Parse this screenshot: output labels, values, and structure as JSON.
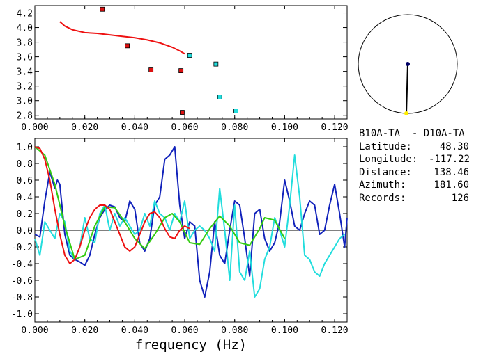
{
  "chart_data": [
    {
      "type": "scatter",
      "xlim": [
        0.0,
        0.125
      ],
      "ylim": [
        2.75,
        4.3
      ],
      "xticks": [
        "0.000",
        "0.020",
        "0.040",
        "0.060",
        "0.080",
        "0.100",
        "0.120"
      ],
      "yticks": [
        "4.2",
        "4.0",
        "3.8",
        "3.6",
        "3.4",
        "3.2",
        "3.0",
        "2.8"
      ],
      "ytick_values": [
        4.2,
        4.0,
        3.8,
        3.6,
        3.4,
        3.2,
        3.0,
        2.8
      ],
      "xtick_values": [
        0.0,
        0.02,
        0.04,
        0.06,
        0.08,
        0.1,
        0.12
      ],
      "series": [
        {
          "name": "red squares",
          "color": "#dd1111",
          "marker": "square",
          "x": [
            0.027,
            0.037,
            0.0465,
            0.0585,
            0.059
          ],
          "y": [
            4.25,
            3.75,
            3.42,
            3.41,
            2.84
          ]
        },
        {
          "name": "cyan squares",
          "color": "#22dddd",
          "marker": "square",
          "x": [
            0.062,
            0.0725,
            0.074,
            0.0805
          ],
          "y": [
            3.62,
            3.5,
            3.05,
            2.86
          ]
        },
        {
          "name": "red curve",
          "color": "#ee1111",
          "marker": "line",
          "x": [
            0.01,
            0.012,
            0.015,
            0.02,
            0.025,
            0.03,
            0.035,
            0.04,
            0.045,
            0.05,
            0.055,
            0.058,
            0.06
          ],
          "y": [
            4.08,
            4.02,
            3.97,
            3.93,
            3.92,
            3.9,
            3.88,
            3.86,
            3.83,
            3.79,
            3.73,
            3.68,
            3.64
          ]
        }
      ]
    },
    {
      "type": "line",
      "xlim": [
        0.0,
        0.125
      ],
      "ylim": [
        -1.1,
        1.1
      ],
      "xticks": [
        "0.000",
        "0.020",
        "0.040",
        "0.060",
        "0.080",
        "0.100",
        "0.120"
      ],
      "xtick_values": [
        0.0,
        0.02,
        0.04,
        0.06,
        0.08,
        0.1,
        0.12
      ],
      "yticks": [
        "1.0",
        "0.8",
        "0.6",
        "0.4",
        "0.2",
        "0.0",
        "-0.2",
        "-0.4",
        "-0.6",
        "-0.8",
        "-1.0"
      ],
      "ytick_values": [
        1.0,
        0.8,
        0.6,
        0.4,
        0.2,
        0.0,
        -0.2,
        -0.4,
        -0.6,
        -0.8,
        -1.0
      ],
      "zero_line": true,
      "xlabel": "frequency (Hz)",
      "series": [
        {
          "name": "blue",
          "color": "#1122bb",
          "x": [
            0.0,
            0.002,
            0.004,
            0.006,
            0.008,
            0.009,
            0.01,
            0.012,
            0.014,
            0.016,
            0.018,
            0.02,
            0.022,
            0.024,
            0.026,
            0.028,
            0.03,
            0.032,
            0.034,
            0.036,
            0.038,
            0.04,
            0.042,
            0.044,
            0.046,
            0.048,
            0.05,
            0.052,
            0.054,
            0.056,
            0.058,
            0.06,
            0.062,
            0.064,
            0.066,
            0.068,
            0.07,
            0.072,
            0.074,
            0.076,
            0.078,
            0.08,
            0.082,
            0.084,
            0.086,
            0.088,
            0.09,
            0.092,
            0.094,
            0.096,
            0.098,
            0.1,
            0.102,
            0.104,
            0.106,
            0.108,
            0.11,
            0.112,
            0.114,
            0.116,
            0.118,
            0.12,
            0.122,
            0.124,
            0.125
          ],
          "y": [
            -0.05,
            -0.08,
            0.35,
            0.7,
            0.5,
            0.6,
            0.55,
            -0.05,
            -0.3,
            -0.35,
            -0.38,
            -0.42,
            -0.3,
            -0.05,
            0.15,
            0.25,
            0.3,
            0.28,
            0.15,
            0.1,
            0.35,
            0.25,
            -0.15,
            -0.25,
            -0.1,
            0.3,
            0.4,
            0.85,
            0.9,
            1.0,
            0.3,
            -0.1,
            0.1,
            0.05,
            -0.6,
            -0.8,
            -0.5,
            0.1,
            -0.3,
            -0.4,
            0.0,
            0.35,
            0.3,
            -0.1,
            -0.55,
            0.2,
            0.25,
            -0.1,
            -0.25,
            -0.15,
            0.1,
            0.6,
            0.35,
            0.05,
            0.0,
            0.2,
            0.35,
            0.3,
            -0.05,
            0.0,
            0.3,
            0.55,
            0.2,
            -0.2,
            0.15
          ]
        },
        {
          "name": "cyan",
          "color": "#22dddd",
          "x": [
            0.0,
            0.002,
            0.004,
            0.006,
            0.008,
            0.01,
            0.012,
            0.014,
            0.016,
            0.018,
            0.02,
            0.022,
            0.024,
            0.026,
            0.028,
            0.03,
            0.032,
            0.034,
            0.036,
            0.038,
            0.04,
            0.042,
            0.044,
            0.046,
            0.048,
            0.05,
            0.052,
            0.054,
            0.056,
            0.058,
            0.06,
            0.062,
            0.064,
            0.066,
            0.068,
            0.07,
            0.072,
            0.074,
            0.076,
            0.078,
            0.08,
            0.082,
            0.084,
            0.086,
            0.088,
            0.09,
            0.092,
            0.094,
            0.096,
            0.098,
            0.1,
            0.102,
            0.104,
            0.106,
            0.108,
            0.11,
            0.112,
            0.114,
            0.116,
            0.118,
            0.12,
            0.122,
            0.124
          ],
          "y": [
            -0.1,
            -0.3,
            0.1,
            0.0,
            -0.1,
            0.2,
            0.1,
            -0.25,
            -0.35,
            -0.2,
            0.15,
            -0.1,
            -0.15,
            0.2,
            0.3,
            0.0,
            0.2,
            0.05,
            0.15,
            0.05,
            -0.05,
            0.0,
            0.2,
            0.05,
            0.35,
            0.2,
            0.15,
            0.0,
            0.2,
            0.1,
            0.35,
            -0.1,
            0.0,
            0.05,
            0.0,
            -0.1,
            -0.25,
            0.5,
            0.0,
            -0.6,
            0.3,
            -0.5,
            -0.6,
            -0.25,
            -0.8,
            -0.7,
            -0.35,
            -0.2,
            0.15,
            0.0,
            -0.2,
            0.3,
            0.9,
            0.4,
            -0.3,
            -0.35,
            -0.5,
            -0.55,
            -0.4,
            -0.3,
            -0.2,
            -0.1,
            -0.05
          ]
        },
        {
          "name": "green",
          "color": "#33cc11",
          "x": [
            0.0,
            0.004,
            0.008,
            0.012,
            0.016,
            0.02,
            0.024,
            0.028,
            0.032,
            0.036,
            0.04,
            0.044,
            0.048,
            0.052,
            0.055,
            0.058,
            0.062,
            0.066,
            0.07,
            0.074,
            0.078,
            0.082,
            0.086,
            0.09,
            0.092,
            0.096,
            0.1
          ],
          "y": [
            1.0,
            0.9,
            0.55,
            0.05,
            -0.35,
            -0.3,
            0.05,
            0.28,
            0.27,
            0.1,
            -0.1,
            -0.22,
            -0.05,
            0.15,
            0.2,
            0.1,
            -0.15,
            -0.17,
            0.02,
            0.17,
            0.05,
            -0.15,
            -0.18,
            0.02,
            0.15,
            0.12,
            -0.1
          ]
        },
        {
          "name": "red",
          "color": "#ee1111",
          "x": [
            0.0,
            0.002,
            0.004,
            0.006,
            0.008,
            0.01,
            0.012,
            0.014,
            0.016,
            0.018,
            0.02,
            0.022,
            0.024,
            0.026,
            0.028,
            0.03,
            0.032,
            0.034,
            0.036,
            0.038,
            0.04,
            0.042,
            0.044,
            0.046,
            0.048,
            0.05,
            0.052,
            0.054,
            0.056,
            0.058,
            0.06,
            0.062
          ],
          "y": [
            1.0,
            0.98,
            0.85,
            0.6,
            0.25,
            -0.05,
            -0.3,
            -0.4,
            -0.35,
            -0.2,
            0.0,
            0.15,
            0.25,
            0.3,
            0.3,
            0.25,
            0.1,
            -0.05,
            -0.2,
            -0.25,
            -0.2,
            -0.05,
            0.1,
            0.2,
            0.22,
            0.15,
            0.02,
            -0.08,
            -0.1,
            0.0,
            0.05,
            0.02
          ]
        }
      ]
    }
  ],
  "map": {
    "circle_color": "#000000",
    "station_a_color": "#000066",
    "station_b_color": "#ffee00",
    "azimuth_deg": 181.6
  },
  "info": {
    "title": "B10A-TA  - D10A-TA",
    "rows": [
      {
        "key": "Latitude:",
        "value": "48.30"
      },
      {
        "key": "Longitude:",
        "value": "-117.22"
      },
      {
        "key": "Distance:",
        "value": "138.46"
      },
      {
        "key": "Azimuth:",
        "value": "181.60"
      },
      {
        "key": "Records:",
        "value": "126"
      }
    ]
  }
}
